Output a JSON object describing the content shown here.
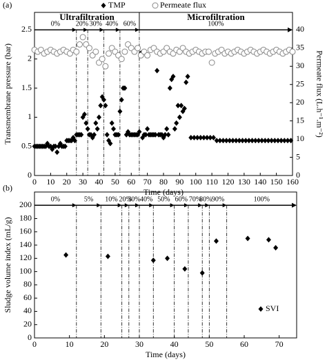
{
  "chart_data": [
    {
      "type": "scatter",
      "panel_label": "(a)",
      "xlabel": "Time (days)",
      "ylabel": "Transmembrane pressure (bar)",
      "y2label": "Permeate flux (L.h⁻¹.m⁻²)",
      "xlim": [
        0,
        160
      ],
      "xticks": [
        0,
        10,
        20,
        30,
        40,
        50,
        60,
        70,
        80,
        90,
        100,
        110,
        120,
        130,
        140,
        150,
        160
      ],
      "ylim": [
        0,
        2.8
      ],
      "yticks": [
        0,
        0.5,
        1,
        1.5,
        2,
        2.5
      ],
      "y2lim": [
        0,
        44.8
      ],
      "y2ticks": [
        0,
        5,
        10,
        15,
        20,
        25,
        30,
        35,
        40
      ],
      "legend": "top",
      "phase_lines": [
        26,
        33,
        43,
        53,
        65
      ],
      "stage_labels": [
        "0%",
        "20%",
        "30%",
        "40%",
        "60%",
        "100%"
      ],
      "modes": [
        "Ultrafiltration",
        "Microfiltration"
      ],
      "series": [
        {
          "name": "TMP",
          "color": "#000000",
          "marker": "diamond",
          "x": [
            0,
            1,
            2,
            3,
            4,
            5,
            6,
            7,
            8,
            9,
            10,
            11,
            12,
            13,
            14,
            15,
            16,
            17,
            18,
            19,
            20,
            21,
            22,
            23,
            24,
            25,
            26,
            27,
            28,
            29,
            30,
            31,
            32,
            33,
            34,
            35,
            36,
            37,
            38,
            39,
            40,
            41,
            42,
            43,
            44,
            45,
            46,
            47,
            48,
            49,
            50,
            51,
            52,
            53,
            54,
            55,
            56,
            57,
            58,
            59,
            60,
            61,
            62,
            63,
            64,
            65,
            66,
            67,
            68,
            69,
            70,
            71,
            72,
            73,
            74,
            75,
            76,
            77,
            78,
            79,
            80,
            81,
            82,
            83,
            84,
            85,
            86,
            87,
            88,
            89,
            90,
            91,
            92,
            93,
            94,
            95,
            97,
            99,
            101,
            103,
            105,
            107,
            109,
            111,
            113,
            115,
            117,
            119,
            121,
            123,
            125,
            127,
            129,
            131,
            133,
            135,
            137,
            139,
            141,
            143,
            145,
            147,
            149,
            151,
            153,
            155,
            157,
            159
          ],
          "values": [
            0.5,
            0.5,
            0.5,
            0.5,
            0.5,
            0.5,
            0.5,
            0.5,
            0.55,
            0.5,
            0.5,
            0.45,
            0.5,
            0.5,
            0.4,
            0.5,
            0.55,
            0.5,
            0.5,
            0.5,
            0.6,
            0.6,
            0.6,
            0.6,
            0.65,
            0.6,
            0.7,
            0.7,
            0.7,
            0.7,
            1.0,
            1.05,
            0.9,
            0.8,
            0.7,
            0.7,
            0.65,
            0.7,
            0.9,
            0.8,
            1.0,
            1.2,
            1.35,
            1.3,
            1.2,
            0.7,
            0.6,
            0.55,
            0.9,
            0.8,
            0.7,
            0.7,
            0.7,
            1.1,
            1.3,
            1.5,
            1.5,
            0.7,
            0.75,
            0.7,
            0.7,
            0.7,
            0.7,
            0.7,
            0.7,
            0.75,
            2.1,
            0.65,
            0.7,
            0.7,
            0.8,
            0.7,
            0.7,
            0.7,
            0.7,
            0.7,
            1.8,
            0.7,
            0.7,
            0.7,
            0.65,
            0.7,
            0.8,
            0.7,
            1.5,
            1.65,
            1.7,
            0.8,
            0.9,
            1.2,
            1.0,
            1.2,
            1.1,
            1.15,
            1.6,
            1.7,
            0.65,
            0.65,
            0.65,
            0.65,
            0.65,
            0.65,
            0.65,
            0.65,
            0.6,
            0.6,
            0.6,
            0.6,
            0.6,
            0.6,
            0.6,
            0.6,
            0.6,
            0.6,
            0.6,
            0.6,
            0.6,
            0.6,
            0.6,
            0.6,
            0.6,
            0.6,
            0.6,
            0.6,
            0.6,
            0.6,
            0.6,
            0.6
          ]
        },
        {
          "name": "Permeate flux",
          "color": "#888888",
          "marker": "circle",
          "axis": "y2",
          "x": [
            0,
            2,
            4,
            6,
            8,
            10,
            12,
            14,
            16,
            18,
            20,
            22,
            24,
            26,
            28,
            30,
            32,
            34,
            36,
            38,
            40,
            42,
            44,
            46,
            48,
            50,
            52,
            54,
            56,
            58,
            60,
            62,
            64,
            66,
            68,
            70,
            72,
            74,
            76,
            78,
            80,
            82,
            84,
            86,
            88,
            90,
            92,
            94,
            96,
            98,
            100,
            102,
            104,
            106,
            108,
            110,
            112,
            114,
            116,
            118,
            120,
            122,
            124,
            126,
            128,
            130,
            132,
            134,
            136,
            138,
            140,
            142,
            144,
            146,
            148,
            150,
            152,
            154,
            156,
            158,
            160
          ],
          "values": [
            34.5,
            34,
            34.5,
            33.5,
            34,
            34.5,
            34,
            33.5,
            34,
            34.5,
            34,
            33.5,
            34.5,
            34,
            36,
            38,
            36,
            35,
            33,
            34,
            31,
            32,
            30,
            33.5,
            35,
            34,
            33,
            32,
            34,
            36,
            35,
            34,
            35,
            33,
            34,
            33,
            34.5,
            35,
            34,
            33.5,
            34,
            35,
            34,
            33.5,
            34.5,
            34,
            35,
            34,
            33.5,
            34,
            34.5,
            34,
            33.5,
            34,
            34,
            31,
            33.5,
            34,
            34.5,
            33.5,
            34,
            33.5,
            34,
            34.5,
            34,
            33.5,
            34,
            34.5,
            34,
            33.5,
            34,
            34.5,
            34,
            33.5,
            34,
            34.5,
            34,
            33.5,
            34,
            34.5,
            34
          ]
        }
      ]
    },
    {
      "type": "scatter",
      "panel_label": "(b)",
      "xlabel": "Time (days)",
      "ylabel": "Sludge volume index (mL/g)",
      "xlim": [
        0,
        75
      ],
      "xticks": [
        0,
        10,
        20,
        30,
        40,
        50,
        60,
        70
      ],
      "ylim": [
        0,
        220
      ],
      "yticks": [
        0,
        20,
        40,
        60,
        80,
        100,
        120,
        140,
        160,
        180,
        200
      ],
      "legend": "lower right",
      "phase_lines": [
        12,
        19,
        25,
        27,
        30,
        34,
        40,
        44,
        48,
        50,
        55
      ],
      "stage_labels": [
        "0%",
        "5%",
        "10%",
        "20%",
        "30%",
        "40%",
        "50%",
        "60%",
        "70%",
        "80%",
        "90%",
        "100%"
      ],
      "series": [
        {
          "name": "SVI",
          "color": "#000000",
          "marker": "diamond",
          "x": [
            9,
            21,
            34,
            38,
            43,
            48,
            52,
            61,
            67,
            69
          ],
          "values": [
            125,
            123,
            117,
            120,
            104,
            98,
            146,
            150,
            148,
            136
          ]
        }
      ]
    }
  ]
}
